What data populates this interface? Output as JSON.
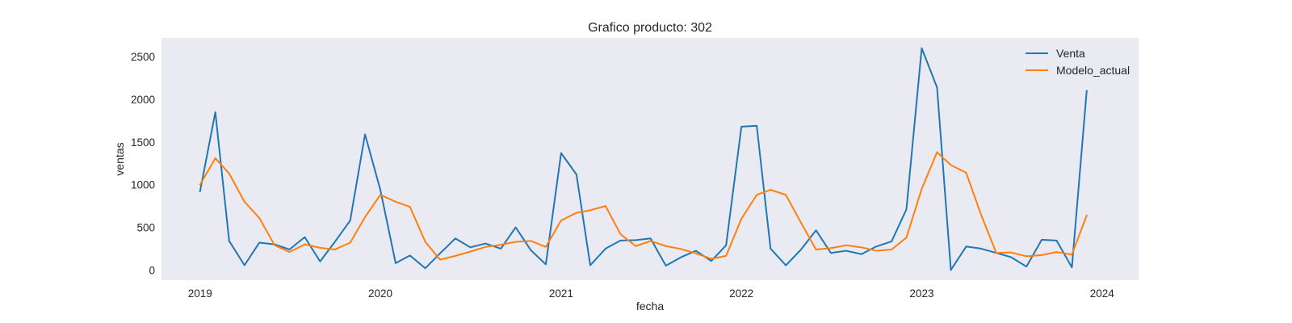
{
  "chart_data": {
    "type": "line",
    "title": "Grafico producto: 302",
    "xlabel": "fecha",
    "ylabel": "ventas",
    "x": [
      "2019-01",
      "2019-02",
      "2019-03",
      "2019-04",
      "2019-05",
      "2019-06",
      "2019-07",
      "2019-08",
      "2019-09",
      "2019-10",
      "2019-11",
      "2019-12",
      "2020-01",
      "2020-02",
      "2020-03",
      "2020-04",
      "2020-05",
      "2020-06",
      "2020-07",
      "2020-08",
      "2020-09",
      "2020-10",
      "2020-11",
      "2020-12",
      "2021-01",
      "2021-02",
      "2021-03",
      "2021-04",
      "2021-05",
      "2021-06",
      "2021-07",
      "2021-08",
      "2021-09",
      "2021-10",
      "2021-11",
      "2021-12",
      "2022-01",
      "2022-02",
      "2022-03",
      "2022-04",
      "2022-05",
      "2022-06",
      "2022-07",
      "2022-08",
      "2022-09",
      "2022-10",
      "2022-11",
      "2022-12",
      "2023-01",
      "2023-02",
      "2023-03",
      "2023-04",
      "2023-05",
      "2023-06",
      "2023-07",
      "2023-08",
      "2023-09",
      "2023-10",
      "2023-11",
      "2023-12"
    ],
    "series": [
      {
        "name": "Venta",
        "color": "#1f77b4",
        "values": [
          920,
          1850,
          340,
          55,
          320,
          300,
          240,
          385,
          100,
          330,
          580,
          1590,
          940,
          80,
          170,
          20,
          195,
          370,
          265,
          310,
          250,
          500,
          230,
          65,
          1370,
          1120,
          55,
          250,
          345,
          350,
          370,
          50,
          150,
          225,
          105,
          290,
          1680,
          1690,
          250,
          55,
          235,
          465,
          200,
          225,
          185,
          275,
          335,
          710,
          2600,
          2140,
          0,
          275,
          250,
          200,
          150,
          40,
          355,
          345,
          30,
          2100
        ]
      },
      {
        "name": "Modelo_actual",
        "color": "#ff7f0e",
        "values": [
          1000,
          1310,
          1130,
          800,
          610,
          290,
          210,
          300,
          260,
          240,
          320,
          620,
          880,
          800,
          740,
          330,
          120,
          165,
          215,
          270,
          295,
          330,
          340,
          270,
          580,
          670,
          700,
          750,
          420,
          280,
          340,
          280,
          245,
          195,
          130,
          165,
          600,
          880,
          940,
          880,
          560,
          240,
          255,
          290,
          265,
          225,
          240,
          380,
          950,
          1380,
          1230,
          1140,
          650,
          200,
          205,
          160,
          175,
          210,
          180,
          640
        ]
      }
    ],
    "x_ticks": [
      "2019",
      "2020",
      "2021",
      "2022",
      "2023",
      "2024"
    ],
    "y_ticks": [
      "0",
      "500",
      "1000",
      "1500",
      "2000",
      "2500"
    ],
    "xlim": [
      "2018-10-15",
      "2024-03-15"
    ],
    "ylim": [
      -120,
      2720
    ],
    "grid": false,
    "legend": "top-right",
    "style": {
      "plot_bg": "#eaeaf2"
    }
  }
}
